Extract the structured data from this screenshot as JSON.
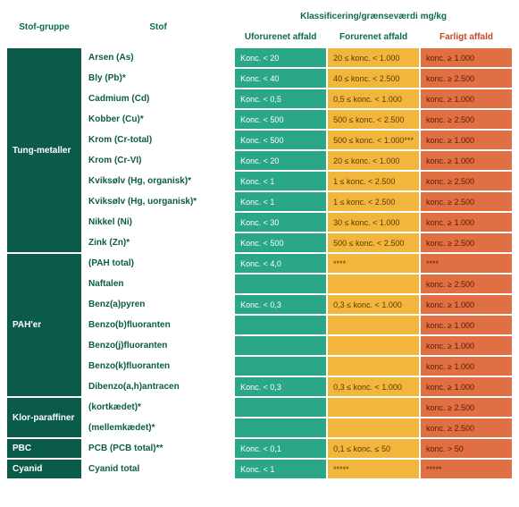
{
  "table": {
    "type": "table",
    "colors": {
      "header_text": "#0b6b53",
      "hazard_header_text": "#c24b27",
      "group_bg": "#0b5b4a",
      "group_text": "#ffffff",
      "substance_text": "#0b5b4a",
      "col1_bg": "#2aa787",
      "col2_bg": "#f2b63c",
      "col3_bg": "#e07043",
      "border": "#ffffff"
    },
    "headers": {
      "group": "Stof-gruppe",
      "substance": "Stof",
      "classification": "Klassificering/grænseværdi mg/kg",
      "col1": "Uforurenet affald",
      "col2": "Forurenet affald",
      "col3": "Farligt affald"
    },
    "groups": [
      {
        "name": "Tung-metaller",
        "rows": [
          {
            "substance": "Arsen (As)",
            "c1": "Konc. < 20",
            "c2": "20 ≤ konc. < 1.000",
            "c3": "konc. ≥ 1.000"
          },
          {
            "substance": "Bly (Pb)*",
            "c1": "Konc. < 40",
            "c2": "40 ≤ konc. < 2.500",
            "c3": "konc. ≥ 2.500"
          },
          {
            "substance": "Cadmium (Cd)",
            "c1": "Konc. < 0,5",
            "c2": "0,5 ≤ konc. < 1.000",
            "c3": "konc. ≥ 1.000"
          },
          {
            "substance": "Kobber (Cu)*",
            "c1": "Konc. < 500",
            "c2": "500 ≤ konc. < 2.500",
            "c3": "konc. ≥ 2.500"
          },
          {
            "substance": "Krom (Cr-total)",
            "c1": "Konc. < 500",
            "c2": "500 ≤ konc. < 1.000***",
            "c3": "konc. ≥ 1.000"
          },
          {
            "substance": "Krom (Cr-VI)",
            "c1": "Konc. < 20",
            "c2": "20 ≤ konc. < 1.000",
            "c3": "konc. ≥ 1.000"
          },
          {
            "substance": "Kviksølv (Hg, organisk)*",
            "c1": "Konc. < 1",
            "c2": "1 ≤ konc. < 2.500",
            "c3": "konc. ≥ 2.500"
          },
          {
            "substance": "Kviksølv (Hg, uorganisk)*",
            "c1": "Konc. < 1",
            "c2": "1 ≤ konc. < 2.500",
            "c3": "konc. ≥ 2.500"
          },
          {
            "substance": "Nikkel (Ni)",
            "c1": "Konc. < 30",
            "c2": "30 ≤ konc. < 1.000",
            "c3": "konc. ≥ 1.000"
          },
          {
            "substance": "Zink (Zn)*",
            "c1": "Konc. < 500",
            "c2": "500 ≤ konc. < 2.500",
            "c3": "konc. ≥ 2.500"
          }
        ]
      },
      {
        "name": "PAH'er",
        "rows": [
          {
            "substance": "(PAH total)",
            "c1": "Konc. < 4,0",
            "c2": "****",
            "c3": "****"
          },
          {
            "substance": "Naftalen",
            "c1": "",
            "c2": "",
            "c3": "konc. ≥ 2.500"
          },
          {
            "substance": "Benz(a)pyren",
            "c1": "Konc. < 0,3",
            "c2": "0,3 ≤ konc. < 1.000",
            "c3": "konc. ≥ 1.000"
          },
          {
            "substance": "Benzo(b)fluoranten",
            "c1": "",
            "c2": "",
            "c3": "konc. ≥ 1.000"
          },
          {
            "substance": "Benzo(j)fluoranten",
            "c1": "",
            "c2": "",
            "c3": "konc. ≥ 1.000"
          },
          {
            "substance": "Benzo(k)fluoranten",
            "c1": "",
            "c2": "",
            "c3": "konc. ≥ 1.000"
          },
          {
            "substance": "Dibenzo(a,h)antracen",
            "c1": "Konc. < 0,3",
            "c2": "0,3 ≤ konc. < 1.000",
            "c3": "konc. ≥ 1.000"
          }
        ]
      },
      {
        "name": "Klor-paraffiner",
        "rows": [
          {
            "substance": "(kortkædet)*",
            "c1": "",
            "c2": "",
            "c3": "konc. ≥ 2.500"
          },
          {
            "substance": "(mellemkædet)*",
            "c1": "",
            "c2": "",
            "c3": "konc. ≥ 2.500"
          }
        ]
      },
      {
        "name": "PBC",
        "rows": [
          {
            "substance": "PCB (PCB total)**",
            "c1": "Konc. < 0,1",
            "c2": "0,1 ≤ konc. ≤ 50",
            "c3": "konc. > 50"
          }
        ]
      },
      {
        "name": "Cyanid",
        "rows": [
          {
            "substance": "Cyanid total",
            "c1": "Konc. < 1",
            "c2": "*****",
            "c3": "*****"
          }
        ]
      }
    ]
  }
}
